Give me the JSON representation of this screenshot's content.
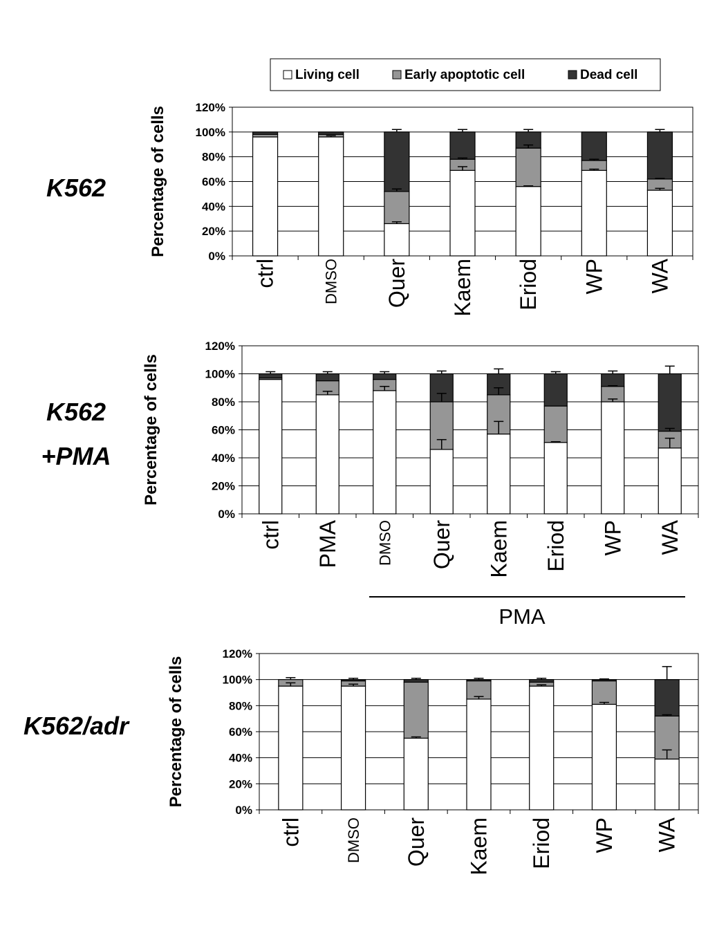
{
  "legend": {
    "items": [
      {
        "label": "Living cell",
        "color": "#ffffff"
      },
      {
        "label": "Early apoptotic cell",
        "color": "#969696"
      },
      {
        "label": "Dead cell",
        "color": "#333333"
      }
    ]
  },
  "chart_data": [
    {
      "type": "bar",
      "stacked": true,
      "row_label": "K562",
      "ylabel": "Percentage of cells",
      "ylim": [
        0,
        120
      ],
      "yticks": [
        "0%",
        "20%",
        "40%",
        "60%",
        "80%",
        "100%",
        "120%"
      ],
      "grid": true,
      "categories": [
        "ctrl",
        "DMSO",
        "Quer",
        "Kaem",
        "Eriod",
        "WP",
        "WA"
      ],
      "series": [
        {
          "name": "Living cell",
          "values": [
            96,
            96,
            26,
            69,
            56,
            69,
            53
          ],
          "error": [
            0,
            1,
            1.5,
            3,
            0.5,
            1,
            1.5
          ]
        },
        {
          "name": "Early apoptotic cell",
          "values": [
            2,
            2,
            26,
            9,
            31,
            8,
            9
          ],
          "error": [
            0,
            0,
            2,
            1,
            2.5,
            1,
            0.5
          ]
        },
        {
          "name": "Dead cell",
          "values": [
            2,
            2,
            48,
            22,
            13,
            23,
            38
          ],
          "error": [
            0,
            0,
            2,
            2,
            2,
            0,
            2
          ]
        }
      ]
    },
    {
      "type": "bar",
      "stacked": true,
      "row_label": "K562",
      "row_label_2": "+PMA",
      "ylabel": "Percentage of cells",
      "ylim": [
        0,
        120
      ],
      "yticks": [
        "0%",
        "20%",
        "40%",
        "60%",
        "80%",
        "100%",
        "120%"
      ],
      "grid": true,
      "categories": [
        "ctrl",
        "PMA",
        "DMSO",
        "Quer",
        "Kaem",
        "Eriod",
        "WP",
        "WA"
      ],
      "group_label": "PMA",
      "series": [
        {
          "name": "Living cell",
          "values": [
            96,
            85,
            88,
            46,
            57,
            51,
            80,
            47
          ],
          "error": [
            0,
            2.5,
            3,
            7,
            9,
            0.5,
            2,
            7
          ]
        },
        {
          "name": "Early apoptotic cell",
          "values": [
            1,
            10,
            8,
            34,
            28,
            26,
            11,
            12
          ],
          "error": [
            0,
            0,
            0,
            6,
            5,
            0,
            0.5,
            2
          ]
        },
        {
          "name": "Dead cell",
          "values": [
            3,
            5,
            4,
            20,
            15,
            23,
            9,
            41
          ],
          "error": [
            1.5,
            1.5,
            1.5,
            2,
            3.5,
            1.5,
            2,
            5.5
          ]
        }
      ]
    },
    {
      "type": "bar",
      "stacked": true,
      "row_label": "K562/adr",
      "ylabel": "Percentage of cells",
      "ylim": [
        0,
        120
      ],
      "yticks": [
        "0%",
        "20%",
        "40%",
        "60%",
        "80%",
        "100%",
        "120%"
      ],
      "grid": true,
      "categories": [
        "ctrl",
        "DMSO",
        "Quer",
        "Kaem",
        "Eriod",
        "WP",
        "WA"
      ],
      "series": [
        {
          "name": "Living cell",
          "values": [
            95,
            95,
            55,
            85,
            95,
            81,
            39
          ],
          "error": [
            2.5,
            1.5,
            1,
            2,
            1,
            1.5,
            7
          ]
        },
        {
          "name": "Early apoptotic cell",
          "values": [
            5,
            4,
            43,
            14,
            3,
            18,
            33
          ],
          "error": [
            0,
            0,
            0,
            0,
            0,
            0,
            1
          ]
        },
        {
          "name": "Dead cell",
          "values": [
            0,
            1,
            2,
            1,
            2,
            1,
            28
          ],
          "error": [
            1.5,
            1,
            1,
            1,
            1,
            0.5,
            10
          ]
        }
      ]
    }
  ]
}
